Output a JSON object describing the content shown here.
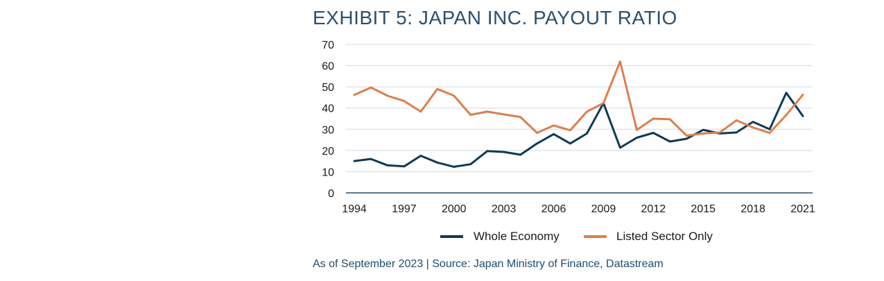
{
  "chart_data": {
    "type": "line",
    "title": "EXHIBIT 5: JAPAN INC. PAYOUT RATIO",
    "xlabel": "",
    "ylabel": "",
    "x": [
      1994,
      1995,
      1996,
      1997,
      1998,
      1999,
      2000,
      2001,
      2002,
      2003,
      2004,
      2005,
      2006,
      2007,
      2008,
      2009,
      2010,
      2011,
      2012,
      2013,
      2014,
      2015,
      2016,
      2017,
      2018,
      2019,
      2020,
      2021
    ],
    "xticks": [
      "1994",
      "1997",
      "2000",
      "2003",
      "2006",
      "2009",
      "2012",
      "2015",
      "2018",
      "2021"
    ],
    "yticks": [
      "0",
      "10",
      "20",
      "30",
      "40",
      "50",
      "60",
      "70"
    ],
    "xlim": [
      1994,
      2021
    ],
    "ylim": [
      0,
      70
    ],
    "grid": true,
    "legend_position": "bottom-center",
    "series": [
      {
        "name": "Whole Economy",
        "color": "#0d3a56",
        "values": [
          15,
          16,
          13,
          12.5,
          17.5,
          14.3,
          12.3,
          13.5,
          19.7,
          19.3,
          18,
          23.3,
          27.7,
          23.3,
          28,
          42.3,
          21.3,
          26,
          28.3,
          24.2,
          25.5,
          29.7,
          28,
          28.5,
          33.5,
          30,
          47.2,
          36.2
        ]
      },
      {
        "name": "Listed Sector Only",
        "color": "#de7e4a",
        "values": [
          46.2,
          49.7,
          45.8,
          43.3,
          38.3,
          49,
          45.8,
          36.8,
          38.3,
          37,
          35.8,
          28.3,
          31.8,
          29.5,
          38.3,
          42.3,
          62,
          29.7,
          35,
          34.7,
          27,
          28,
          28.5,
          34.2,
          30.8,
          28.3,
          36.7,
          46.3
        ]
      }
    ]
  },
  "footer": {
    "source": "As of September 2023 | Source: Japan Ministry of Finance, Datastream"
  }
}
